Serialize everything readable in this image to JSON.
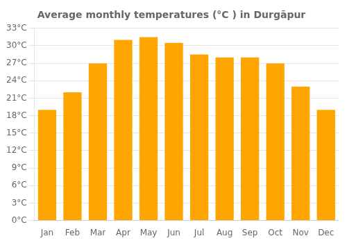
{
  "chart_data": {
    "type": "bar",
    "title": "Average monthly temperatures (°C ) in Durgāpur",
    "categories": [
      "Jan",
      "Feb",
      "Mar",
      "Apr",
      "May",
      "Jun",
      "Jul",
      "Aug",
      "Sep",
      "Oct",
      "Nov",
      "Dec"
    ],
    "values": [
      19.0,
      22.0,
      27.0,
      31.0,
      31.5,
      30.5,
      28.5,
      28.0,
      28.0,
      27.0,
      23.0,
      19.0
    ],
    "color": "#FFA500",
    "ylim": [
      0,
      33
    ],
    "yticks": [
      {
        "value": 0,
        "label": "0°C"
      },
      {
        "value": 3,
        "label": "3°C"
      },
      {
        "value": 6,
        "label": "6°C"
      },
      {
        "value": 9,
        "label": "9°C"
      },
      {
        "value": 12,
        "label": "12°C"
      },
      {
        "value": 15,
        "label": "15°C"
      },
      {
        "value": 18,
        "label": "18°C"
      },
      {
        "value": 21,
        "label": "21°C"
      },
      {
        "value": 24,
        "label": "24°C"
      },
      {
        "value": 27,
        "label": "27°C"
      },
      {
        "value": 30,
        "label": "30°C"
      },
      {
        "value": 33,
        "label": "33°C"
      }
    ],
    "grid": true
  }
}
